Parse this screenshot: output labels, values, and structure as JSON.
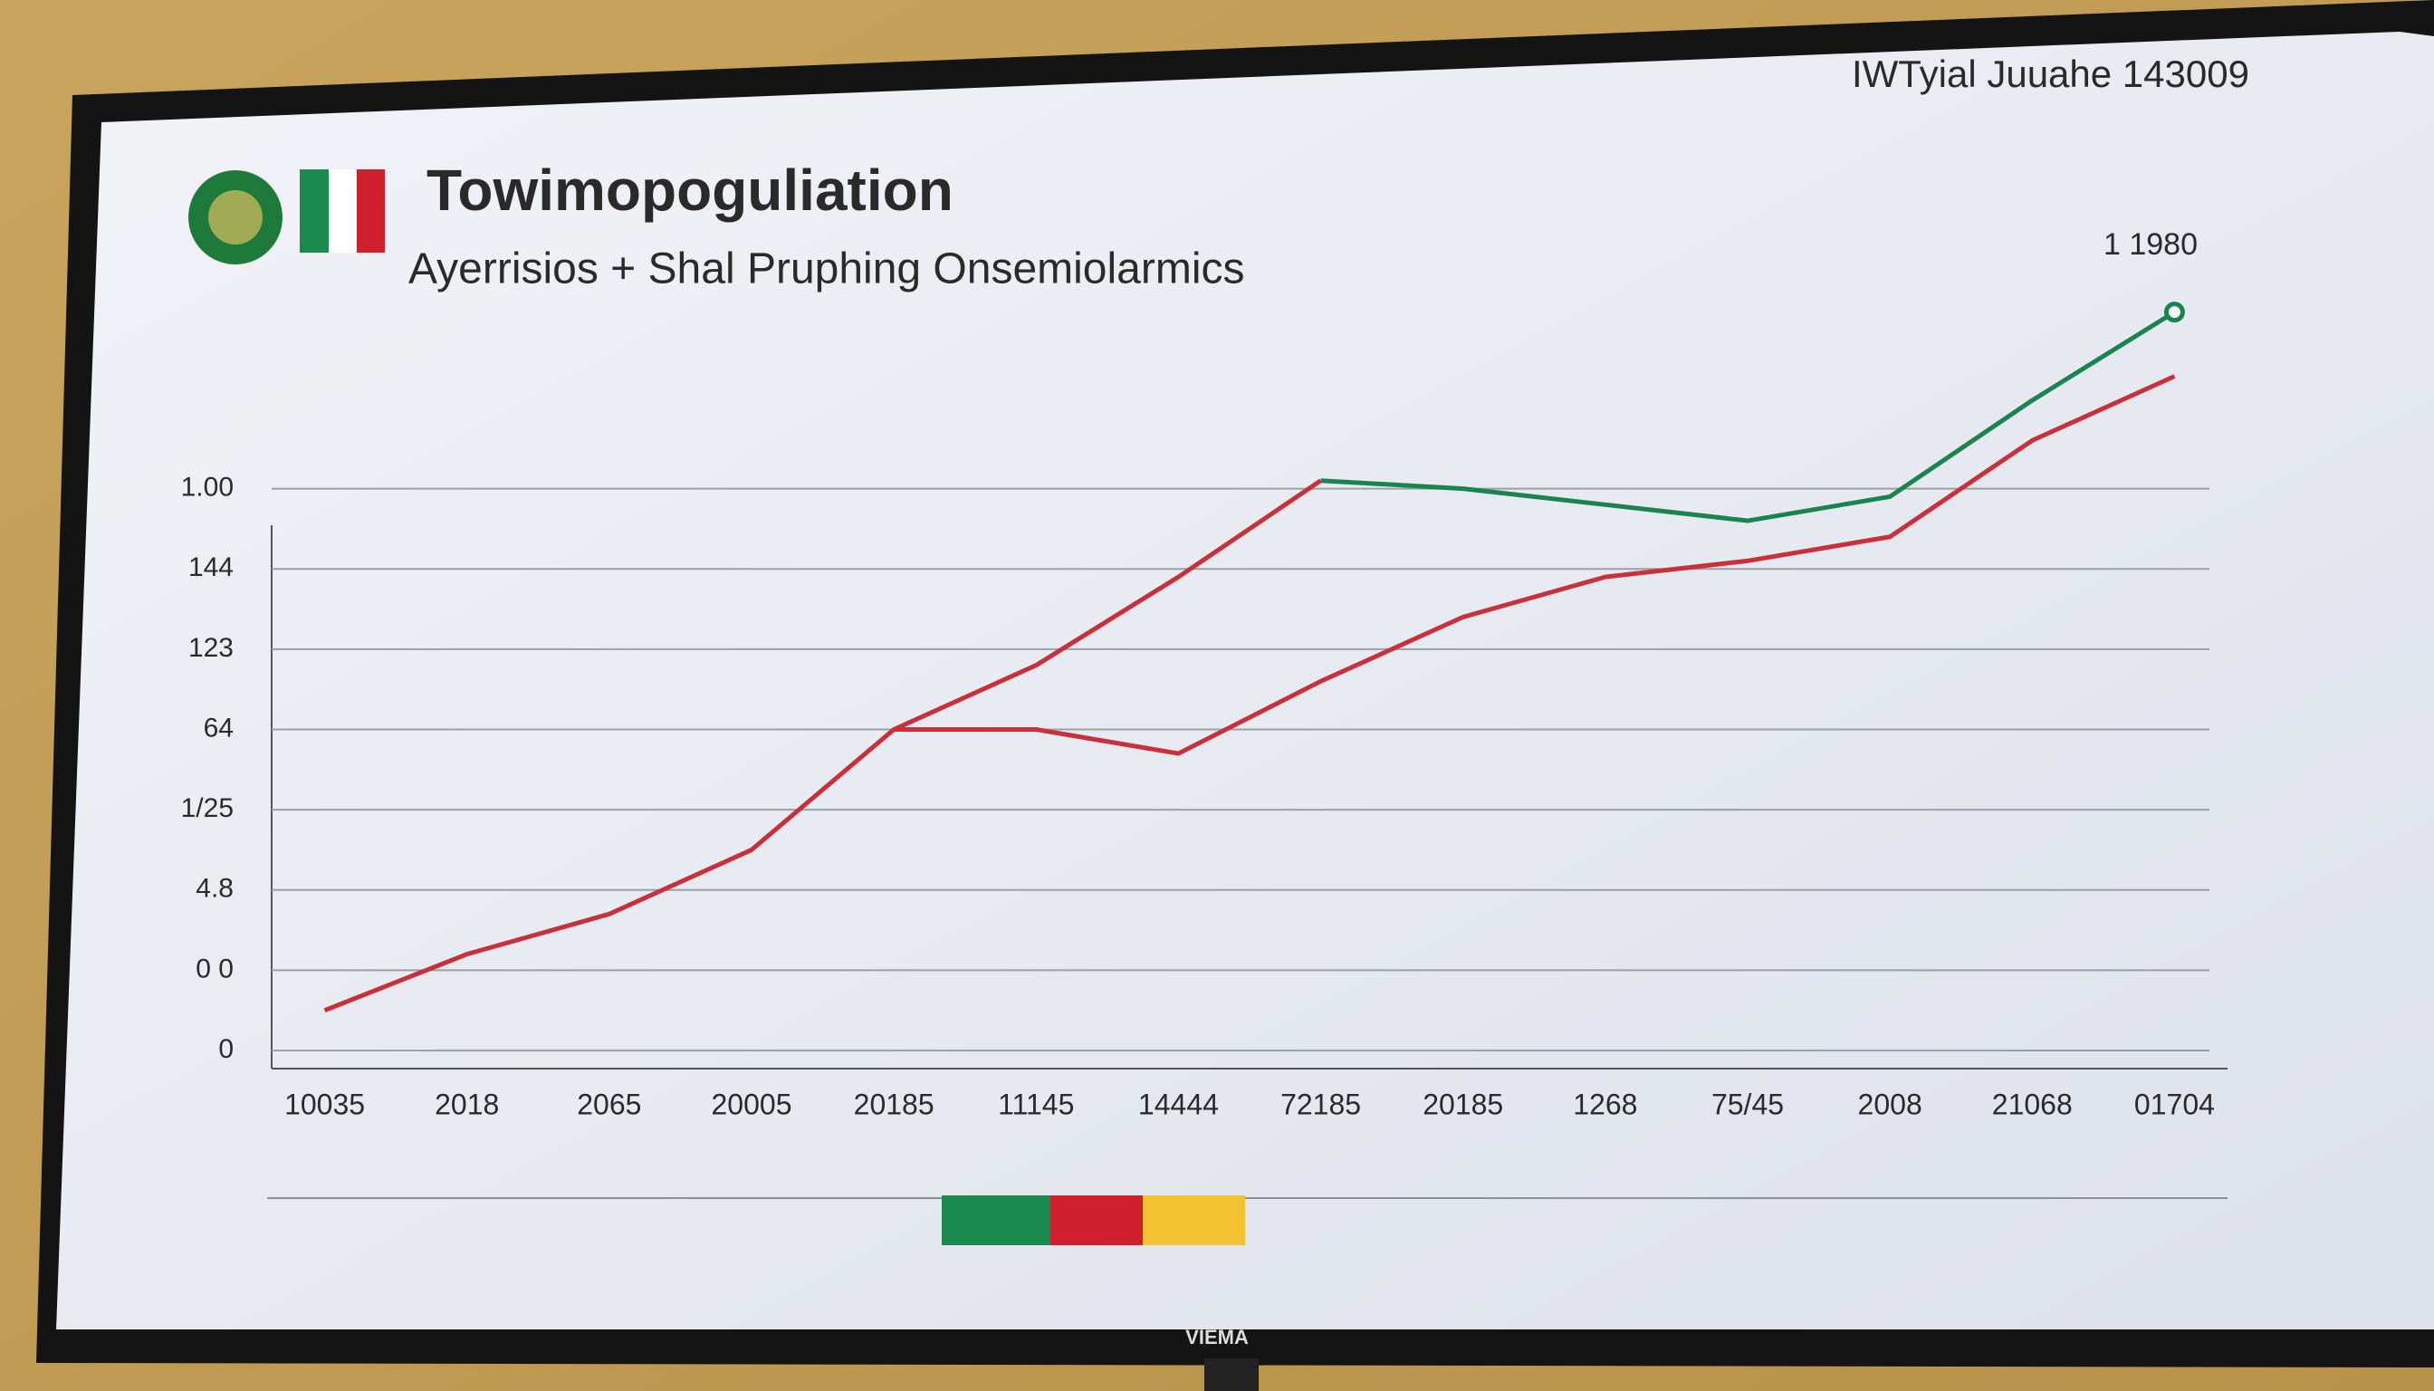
{
  "screen": {
    "corner_text": "IWTyial Juuahe 143009",
    "brand": "VIEMA"
  },
  "chart_data": {
    "type": "line",
    "title": "Towimopoguliation",
    "subtitle": "Ayerrisios + Shal Pruphing Onsemiolarmics",
    "annotation": "1 1980",
    "categories": [
      "10035",
      "2018",
      "2065",
      "20005",
      "20185",
      "11145",
      "14444",
      "72185",
      "20185",
      "1268",
      "75/45",
      "2008",
      "21068",
      "01704"
    ],
    "series": [
      {
        "color": "#c8303a",
        "values": [
          0.5,
          1.2,
          1.7,
          2.5,
          4.0,
          4.8,
          5.9,
          7.1,
          null,
          null,
          null,
          null,
          null,
          null
        ]
      },
      {
        "color": "#1a8450",
        "values": [
          null,
          null,
          null,
          null,
          null,
          null,
          null,
          7.1,
          7.0,
          6.8,
          6.6,
          6.9,
          8.1,
          9.2
        ]
      },
      {
        "color": "#c8303a",
        "values": [
          null,
          null,
          null,
          null,
          4.0,
          4.0,
          3.7,
          4.6,
          5.4,
          5.9,
          6.1,
          6.4,
          7.6,
          8.4
        ]
      }
    ],
    "ylim": [
      0,
      9.5
    ],
    "yticks": [
      0,
      {
        "value": 1,
        "label": "0 0"
      },
      {
        "value": 2,
        "label": "4.8"
      },
      {
        "value": 3,
        "label": "1/25"
      },
      {
        "value": 4,
        "label": "64"
      },
      {
        "value": 5,
        "label": "123"
      },
      {
        "value": 6,
        "label": "144"
      },
      {
        "value": 7,
        "label": "1.00"
      }
    ],
    "grid": true,
    "legend_colors": [
      "#1a8a4e",
      "#d0202e",
      "#f2c230"
    ]
  }
}
